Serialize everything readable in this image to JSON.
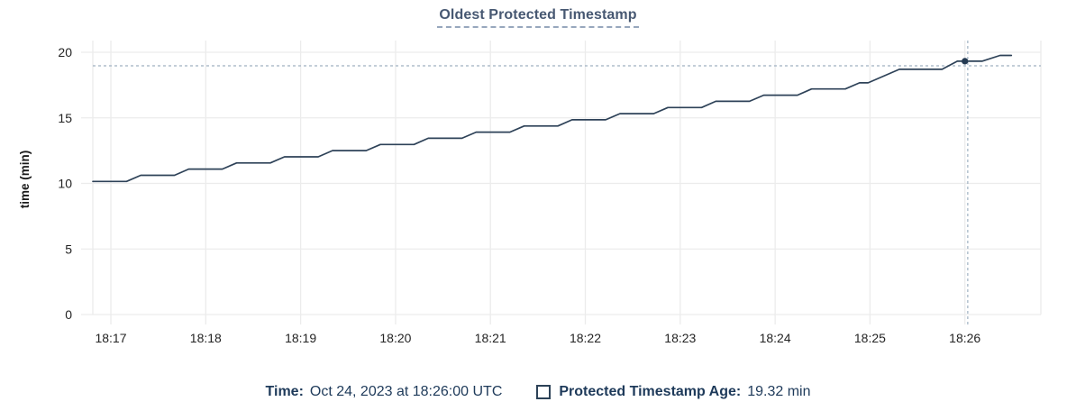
{
  "title": "Oldest Protected Timestamp",
  "colors": {
    "line": "#2e4258",
    "marker": "#243a52",
    "grid": "#ececec",
    "axis_text": "#242424",
    "crosshair": "#9fb1c1",
    "title_text": "#475872",
    "tooltip_text": "#1e3a5a"
  },
  "chart_data": {
    "type": "line",
    "title": "Oldest Protected Timestamp",
    "xlabel": "",
    "ylabel": "time (min)",
    "ylim": [
      0,
      20
    ],
    "y_ticks": [
      0,
      5,
      10,
      15,
      20
    ],
    "x_window_minutes": [
      0,
      9.98
    ],
    "x_ticks": [
      {
        "label": "18:17",
        "t": 0.19
      },
      {
        "label": "18:18",
        "t": 1.19
      },
      {
        "label": "18:19",
        "t": 2.19
      },
      {
        "label": "18:20",
        "t": 3.19
      },
      {
        "label": "18:21",
        "t": 4.19
      },
      {
        "label": "18:22",
        "t": 5.19
      },
      {
        "label": "18:23",
        "t": 6.19
      },
      {
        "label": "18:24",
        "t": 7.19
      },
      {
        "label": "18:25",
        "t": 8.19
      },
      {
        "label": "18:26",
        "t": 9.19
      }
    ],
    "grid": true,
    "legend_position": "bottom",
    "series": [
      {
        "name": "Protected Timestamp Age",
        "unit": "min",
        "points": [
          [
            0.0,
            10.15
          ],
          [
            0.355,
            10.15
          ],
          [
            0.505,
            10.62
          ],
          [
            0.86,
            10.62
          ],
          [
            1.01,
            11.09
          ],
          [
            1.365,
            11.09
          ],
          [
            1.515,
            11.56
          ],
          [
            1.87,
            11.56
          ],
          [
            2.02,
            12.03
          ],
          [
            2.375,
            12.03
          ],
          [
            2.525,
            12.5
          ],
          [
            2.88,
            12.5
          ],
          [
            3.03,
            12.97
          ],
          [
            3.385,
            12.97
          ],
          [
            3.535,
            13.44
          ],
          [
            3.89,
            13.44
          ],
          [
            4.04,
            13.91
          ],
          [
            4.395,
            13.91
          ],
          [
            4.545,
            14.38
          ],
          [
            4.9,
            14.38
          ],
          [
            5.05,
            14.85
          ],
          [
            5.405,
            14.85
          ],
          [
            5.555,
            15.32
          ],
          [
            5.91,
            15.32
          ],
          [
            6.06,
            15.79
          ],
          [
            6.415,
            15.79
          ],
          [
            6.565,
            16.26
          ],
          [
            6.92,
            16.26
          ],
          [
            7.07,
            16.73
          ],
          [
            7.425,
            16.73
          ],
          [
            7.575,
            17.2
          ],
          [
            7.93,
            17.2
          ],
          [
            8.08,
            17.67
          ],
          [
            8.17,
            17.67
          ],
          [
            8.5,
            18.7
          ],
          [
            8.95,
            18.7
          ],
          [
            9.11,
            19.32
          ],
          [
            9.37,
            19.32
          ],
          [
            9.56,
            19.76
          ],
          [
            9.68,
            19.76
          ]
        ]
      }
    ],
    "hover": {
      "t": 9.19,
      "value": 19.32,
      "crosshair_t": 9.22,
      "crosshair_value": 18.97
    }
  },
  "tooltip": {
    "time_label": "Time:",
    "time_value": "Oct 24, 2023 at 18:26:00 UTC",
    "age_label": "Protected Timestamp Age:",
    "age_value": "19.32 min"
  }
}
